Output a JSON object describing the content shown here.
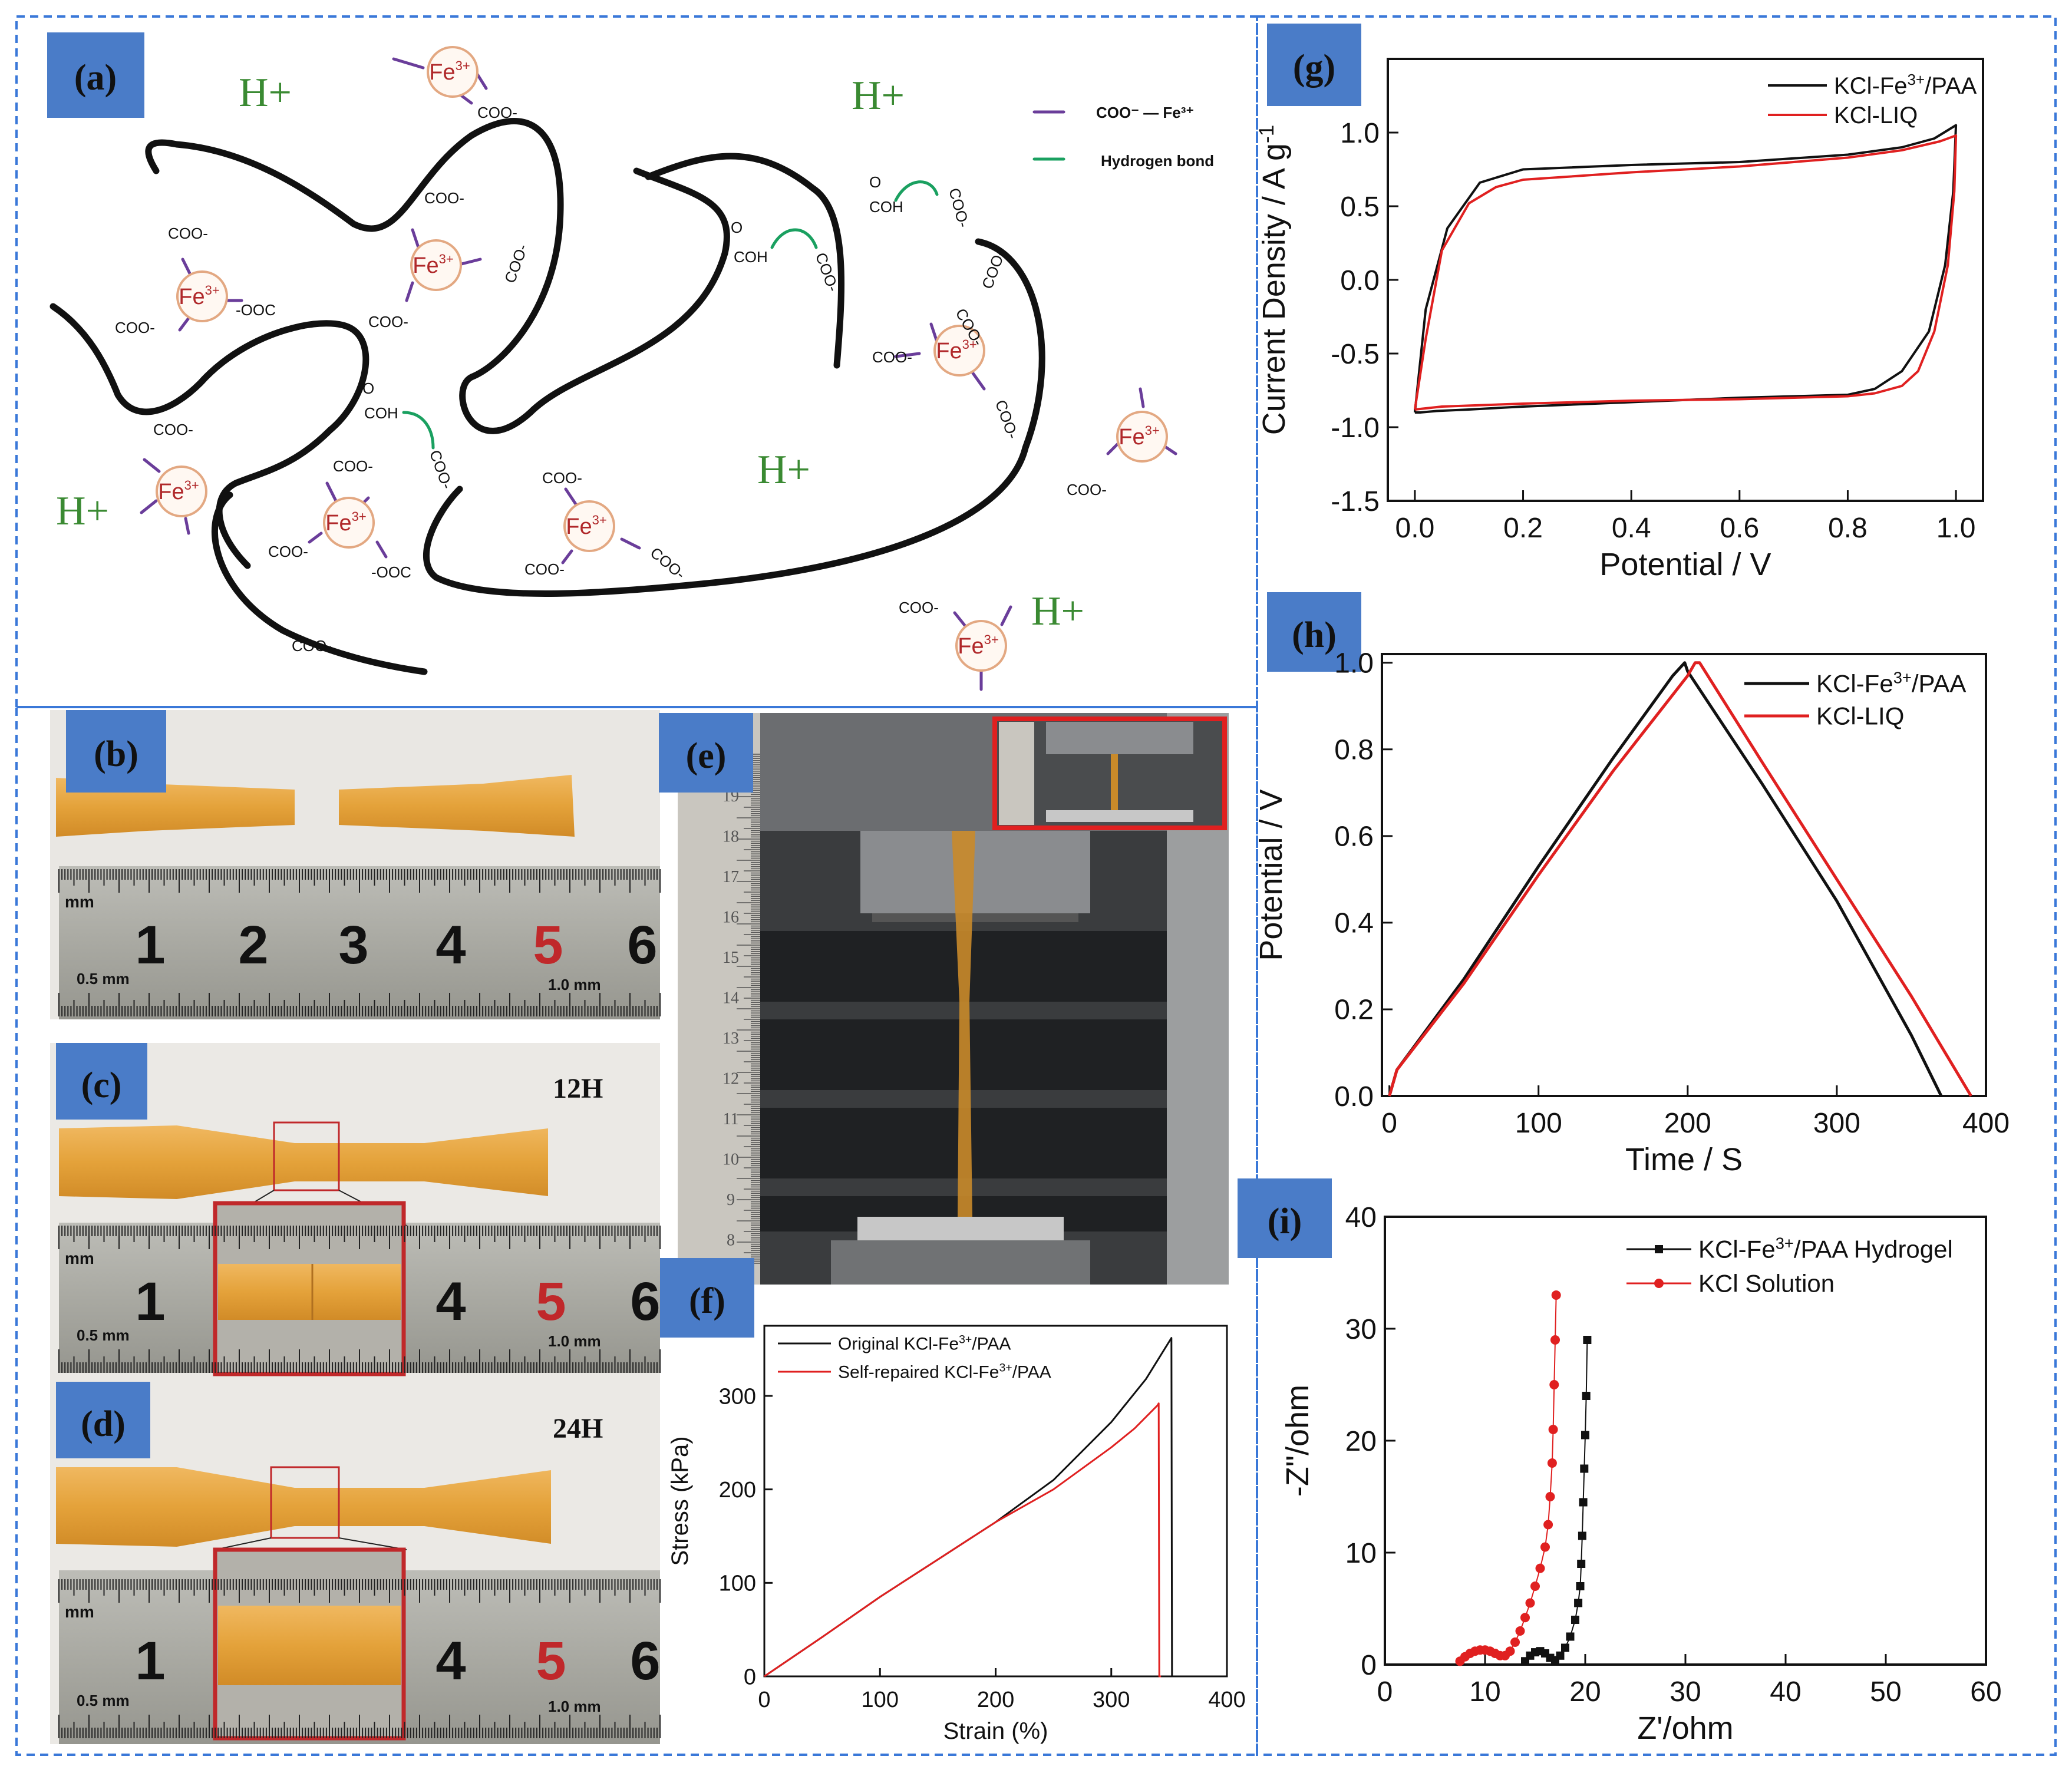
{
  "panels": {
    "a": {
      "label": "(a)"
    },
    "b": {
      "label": "(b)"
    },
    "c": {
      "label": "(c)",
      "time": "12H"
    },
    "d": {
      "label": "(d)",
      "time": "24H"
    },
    "e": {
      "label": "(e)"
    },
    "f": {
      "label": "(f)"
    },
    "g": {
      "label": "(g)"
    },
    "h": {
      "label": "(h)"
    },
    "i": {
      "label": "(i)"
    }
  },
  "scheme": {
    "ion": "Fe3+",
    "ion_base": "Fe",
    "ion_sup": "3+",
    "proton": "H+",
    "carboxylate": "COO-",
    "carboxylate_rev": "-OOC",
    "acid": "COH",
    "carbonyl_o": "O",
    "legend_coord": "COO⁻ — Fe³⁺",
    "legend_hbond": "Hydrogen bond",
    "colors": {
      "chain": "#111111",
      "coord": "#6a3d9a",
      "hbond": "#1aa060",
      "proton": "#3a8a32",
      "ion_text": "#b0282a",
      "ion_ring": "#e3a882"
    }
  },
  "rulers": {
    "unit_mm": "mm",
    "half_mm": "0.5 mm",
    "one_mm": "1.0 mm",
    "b_numbers": [
      "1",
      "2",
      "3",
      "4",
      "5",
      "6"
    ],
    "c_numbers": [
      "1",
      "4",
      "5",
      "6"
    ],
    "d_numbers": [
      "1",
      "4",
      "5",
      "6"
    ],
    "e_numbers": [
      "19",
      "18",
      "17",
      "16",
      "15",
      "14",
      "13",
      "12",
      "11",
      "10",
      "9",
      "8"
    ],
    "highlight_color": "#c0282a"
  },
  "chart_data": [
    {
      "panel": "f",
      "type": "line",
      "xlabel": "Strain (%)",
      "ylabel": "Stress (kPa)",
      "xlim": [
        0,
        400
      ],
      "ylim": [
        0,
        375
      ],
      "xticks": [
        0,
        100,
        200,
        300,
        400
      ],
      "yticks": [
        0,
        100,
        200,
        300
      ],
      "legend_position": "top-left",
      "series": [
        {
          "name": "Original KCl-Fe³⁺/PAA",
          "color": "#111111",
          "x": [
            0,
            50,
            100,
            150,
            200,
            250,
            300,
            330,
            350,
            352,
            352.5,
            354
          ],
          "y": [
            0,
            42,
            85,
            125,
            165,
            210,
            272,
            318,
            358,
            362,
            0,
            0
          ]
        },
        {
          "name": "Self-repaired KCl-Fe³⁺/PAA",
          "color": "#e02020",
          "x": [
            0,
            50,
            100,
            150,
            200,
            250,
            300,
            320,
            340,
            341,
            341.5,
            343
          ],
          "y": [
            0,
            42,
            85,
            125,
            165,
            200,
            245,
            265,
            290,
            292,
            0,
            0
          ]
        }
      ]
    },
    {
      "panel": "g",
      "type": "line",
      "xlabel": "Potential / V",
      "ylabel": "Current Density / A g⁻¹",
      "xlim": [
        -0.05,
        1.05
      ],
      "ylim": [
        -1.5,
        1.5
      ],
      "xticks": [
        0.0,
        0.2,
        0.4,
        0.6,
        0.8,
        1.0
      ],
      "xtick_labels": [
        "0.0",
        "0.2",
        "0.4",
        "0.6",
        "0.8",
        "1.0"
      ],
      "yticks": [
        -1.5,
        -1.0,
        -0.5,
        0.0,
        0.5,
        1.0
      ],
      "ytick_labels": [
        "-1.5",
        "-1.0",
        "-0.5",
        "0.0",
        "0.5",
        "1.0"
      ],
      "legend_position": "top-right",
      "series": [
        {
          "name": "KCl-Fe³⁺/PAA",
          "color": "#111111",
          "x": [
            0.0,
            0.02,
            0.06,
            0.12,
            0.2,
            0.4,
            0.6,
            0.8,
            0.9,
            0.96,
            1.0,
            0.995,
            0.98,
            0.95,
            0.9,
            0.85,
            0.8,
            0.6,
            0.4,
            0.2,
            0.1,
            0.04,
            0.01,
            0.0
          ],
          "y": [
            -0.9,
            -0.2,
            0.35,
            0.66,
            0.75,
            0.78,
            0.8,
            0.85,
            0.9,
            0.96,
            1.05,
            0.6,
            0.1,
            -0.35,
            -0.62,
            -0.74,
            -0.78,
            -0.8,
            -0.83,
            -0.86,
            -0.88,
            -0.89,
            -0.9,
            -0.9
          ]
        },
        {
          "name": "KCl-LIQ",
          "color": "#e02020",
          "x": [
            0.0,
            0.02,
            0.05,
            0.1,
            0.15,
            0.2,
            0.4,
            0.6,
            0.8,
            0.9,
            0.97,
            1.0,
            0.997,
            0.985,
            0.96,
            0.93,
            0.9,
            0.85,
            0.8,
            0.6,
            0.4,
            0.2,
            0.05,
            0.0
          ],
          "y": [
            -0.88,
            -0.4,
            0.2,
            0.52,
            0.63,
            0.68,
            0.73,
            0.77,
            0.83,
            0.88,
            0.94,
            0.98,
            0.6,
            0.1,
            -0.35,
            -0.62,
            -0.72,
            -0.77,
            -0.79,
            -0.81,
            -0.82,
            -0.84,
            -0.86,
            -0.88
          ]
        }
      ]
    },
    {
      "panel": "h",
      "type": "line",
      "xlabel": "Time / S",
      "ylabel": "Potential / V",
      "xlim": [
        -5,
        400
      ],
      "ylim": [
        0.0,
        1.02
      ],
      "xticks": [
        0,
        100,
        200,
        300,
        400
      ],
      "yticks": [
        0.0,
        0.2,
        0.4,
        0.6,
        0.8,
        1.0
      ],
      "ytick_labels": [
        "0.0",
        "0.2",
        "0.4",
        "0.6",
        "0.8",
        "1.0"
      ],
      "legend_position": "top-right",
      "series": [
        {
          "name": "KCl-Fe³⁺/PAA",
          "color": "#111111",
          "x": [
            0,
            5,
            50,
            100,
            150,
            190,
            198,
            200,
            250,
            300,
            350,
            370
          ],
          "y": [
            0,
            0.06,
            0.27,
            0.53,
            0.78,
            0.97,
            1.0,
            0.98,
            0.72,
            0.45,
            0.14,
            0.0
          ]
        },
        {
          "name": "KCl-LIQ",
          "color": "#e02020",
          "x": [
            0,
            5,
            50,
            100,
            150,
            200,
            205,
            208,
            250,
            300,
            350,
            390
          ],
          "y": [
            0,
            0.06,
            0.26,
            0.51,
            0.75,
            0.97,
            1.0,
            1.0,
            0.77,
            0.5,
            0.23,
            0.0
          ]
        }
      ]
    },
    {
      "panel": "i",
      "type": "scatter",
      "xlabel": "Z'/ohm",
      "ylabel": "-Z\"/ohm",
      "xlim": [
        0,
        60
      ],
      "ylim": [
        0,
        40
      ],
      "xticks": [
        0,
        10,
        20,
        30,
        40,
        50,
        60
      ],
      "yticks": [
        0,
        10,
        20,
        30,
        40
      ],
      "legend_position": "top-right",
      "series": [
        {
          "name": "KCl-Fe³⁺/PAA Hydrogel",
          "color": "#111111",
          "marker": "square",
          "x": [
            14,
            14.5,
            15,
            15.5,
            16,
            16.5,
            17,
            17.5,
            18,
            18.5,
            19,
            19.3,
            19.5,
            19.6,
            19.7,
            19.8,
            19.9,
            20,
            20.1,
            20.2
          ],
          "y": [
            0.3,
            0.8,
            1.1,
            1.2,
            1.0,
            0.6,
            0.4,
            0.8,
            1.5,
            2.5,
            4,
            5.5,
            7,
            9,
            11.5,
            14.5,
            17.5,
            20.5,
            24,
            29
          ]
        },
        {
          "name": "KCl Solution",
          "color": "#e02020",
          "marker": "circle",
          "x": [
            7.5,
            8,
            8.5,
            9,
            9.5,
            10,
            10.5,
            11,
            11.5,
            12,
            12.5,
            13,
            13.5,
            14,
            14.5,
            15,
            15.5,
            16,
            16.3,
            16.5,
            16.7,
            16.8,
            16.9,
            17,
            17.1
          ],
          "y": [
            0.3,
            0.7,
            1.0,
            1.2,
            1.3,
            1.3,
            1.2,
            1.0,
            0.8,
            0.8,
            1.2,
            2,
            3,
            4.2,
            5.5,
            7,
            8.6,
            10.5,
            12.5,
            15,
            18,
            21,
            25,
            29,
            33
          ]
        }
      ]
    }
  ]
}
